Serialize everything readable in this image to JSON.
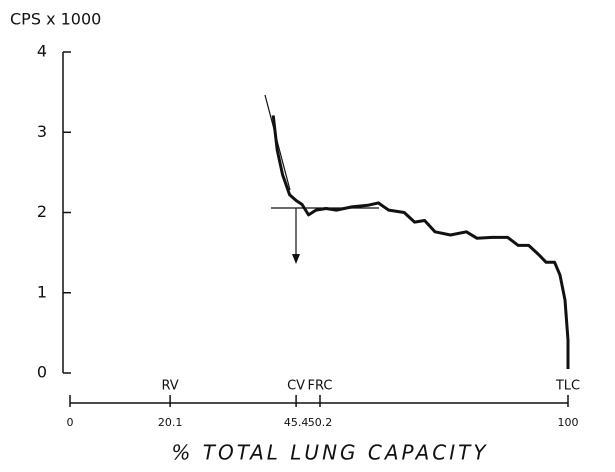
{
  "chart_data": {
    "type": "line",
    "y_label": "CPS x 1000",
    "x_label": "% TOTAL LUNG CAPACITY",
    "color": "#111111",
    "xlim": [
      0,
      100
    ],
    "xticks": [
      0,
      20.1,
      45.4,
      50.2,
      100
    ],
    "ylim": [
      0,
      4
    ],
    "yticks": [
      0,
      1,
      2,
      3,
      4
    ],
    "annotations": [
      {
        "text": "RV",
        "x": 20.1
      },
      {
        "text": "CV",
        "x": 45.4
      },
      {
        "text": "FRC",
        "x": 50.2
      },
      {
        "text": "TLC",
        "x": 100
      }
    ],
    "x": [
      40.8,
      41.6,
      42.7,
      44.1,
      45.4,
      46.6,
      47.9,
      49.4,
      51.4,
      53.5,
      56.6,
      59.8,
      61.9,
      64.0,
      67.1,
      69.2,
      71.2,
      73.3,
      76.4,
      79.6,
      81.7,
      84.8,
      87.9,
      90.0,
      92.1,
      94.2,
      95.6,
      97.3,
      98.4,
      99.4,
      100,
      100
    ],
    "values": [
      3.21,
      2.78,
      2.47,
      2.22,
      2.15,
      2.1,
      1.97,
      2.03,
      2.05,
      2.03,
      2.07,
      2.09,
      2.12,
      2.03,
      2.0,
      1.88,
      1.9,
      1.76,
      1.72,
      1.76,
      1.68,
      1.69,
      1.69,
      1.59,
      1.59,
      1.47,
      1.38,
      1.38,
      1.22,
      0.91,
      0.41,
      0.05
    ]
  }
}
